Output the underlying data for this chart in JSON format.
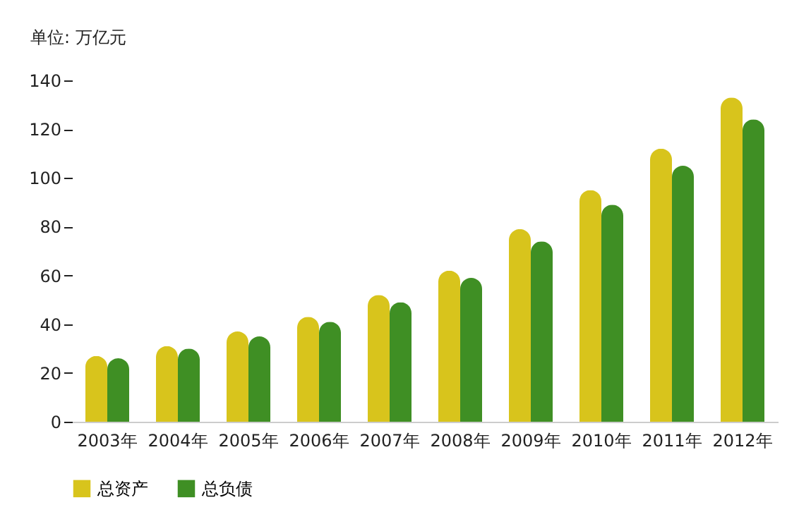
{
  "chart_data": {
    "type": "bar",
    "ylabel": "单位: 万亿元",
    "categories": [
      "2003年",
      "2004年",
      "2005年",
      "2006年",
      "2007年",
      "2008年",
      "2009年",
      "2010年",
      "2011年",
      "2012年"
    ],
    "series": [
      {
        "name": "总资产",
        "color": "#d8c41c",
        "values": [
          27,
          31,
          37,
          43,
          52,
          62,
          79,
          95,
          112,
          133
        ]
      },
      {
        "name": "总负债",
        "color": "#3f8f24",
        "values": [
          26,
          30,
          35,
          41,
          49,
          59,
          74,
          89,
          105,
          124
        ]
      }
    ],
    "ylim": [
      0,
      140
    ],
    "yticks": [
      0,
      20,
      40,
      60,
      80,
      100,
      120,
      140
    ],
    "grid": false,
    "legend": "bottom left"
  }
}
